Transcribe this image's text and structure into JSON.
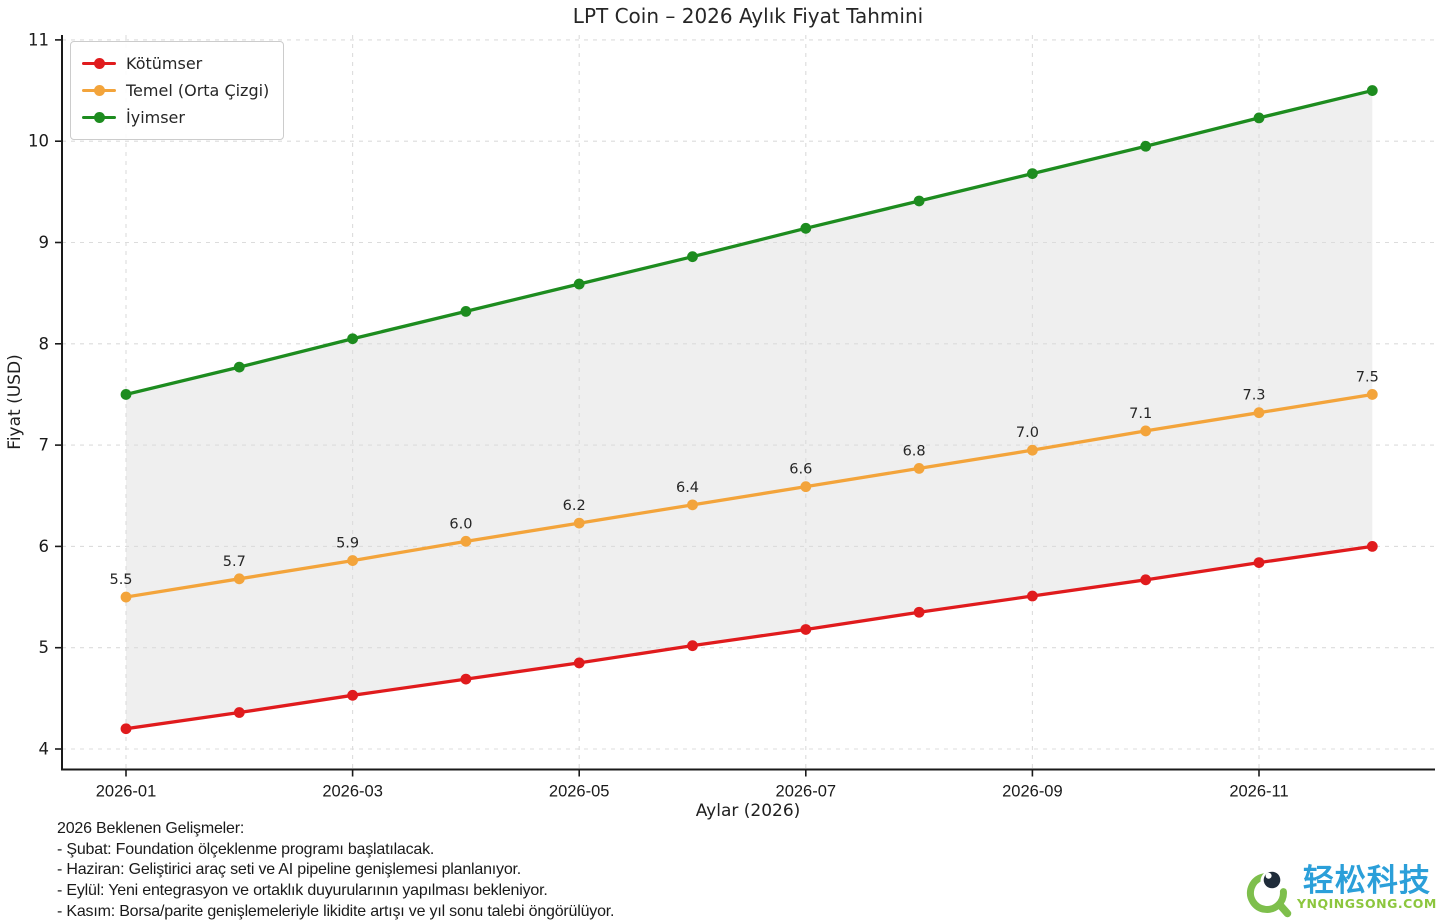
{
  "chart_data": {
    "type": "line",
    "title": "LPT Coin – 2026 Aylık Fiyat Tahmini",
    "xlabel": "Aylar (2026)",
    "ylabel": "Fiyat (USD)",
    "x_categories": [
      "2026-01",
      "2026-02",
      "2026-03",
      "2026-04",
      "2026-05",
      "2026-06",
      "2026-07",
      "2026-08",
      "2026-09",
      "2026-10",
      "2026-11",
      "2026-12"
    ],
    "x_tick_labels": [
      "2026-01",
      "2026-03",
      "2026-05",
      "2026-07",
      "2026-09",
      "2026-11"
    ],
    "y_ticks": [
      4,
      5,
      6,
      7,
      8,
      9,
      10,
      11
    ],
    "ylim": [
      3.8,
      11.05
    ],
    "grid": "dashed",
    "legend_position": "top-left",
    "band": {
      "between": [
        "Kötümser",
        "İyimser"
      ],
      "color": "#efefef"
    },
    "series": [
      {
        "name": "Kötümser",
        "color": "#e01b1d",
        "values": [
          4.2,
          4.36,
          4.53,
          4.69,
          4.85,
          5.02,
          5.18,
          5.35,
          5.51,
          5.67,
          5.84,
          6.0
        ]
      },
      {
        "name": "Temel (Orta Çizgi)",
        "color": "#f3a43b",
        "values": [
          5.5,
          5.68,
          5.86,
          6.05,
          6.23,
          6.41,
          6.59,
          6.77,
          6.95,
          7.14,
          7.32,
          7.5
        ],
        "point_labels": [
          "5.5",
          "5.7",
          "5.9",
          "6.0",
          "6.2",
          "6.4",
          "6.6",
          "6.8",
          "7.0",
          "7.1",
          "7.3",
          "7.5"
        ]
      },
      {
        "name": "İyimser",
        "color": "#1d8c1f",
        "values": [
          7.5,
          7.77,
          8.05,
          8.32,
          8.59,
          8.86,
          9.14,
          9.41,
          9.68,
          9.95,
          10.23,
          10.5
        ]
      }
    ]
  },
  "notes": {
    "heading": "2026 Beklenen Gelişmeler:",
    "lines": [
      "- Şubat: Foundation ölçeklenme programı başlatılacak.",
      "- Haziran: Geliştirici araç seti ve AI pipeline genişlemesi planlanıyor.",
      "- Eylül: Yeni entegrasyon ve ortaklık duyurularının yapılması bekleniyor.",
      "- Kasım: Borsa/parite genişlemeleriyle likidite artışı ve yıl sonu talebi öngörülüyor."
    ]
  },
  "watermark": {
    "brand": "轻松科技",
    "domain": "YNQINGSONG.COM",
    "brand_color": "#2b9fd9",
    "domain_color": "#8cc63e",
    "icon": "magnifier-eye-icon",
    "icon_color": "#7ebf4c"
  }
}
